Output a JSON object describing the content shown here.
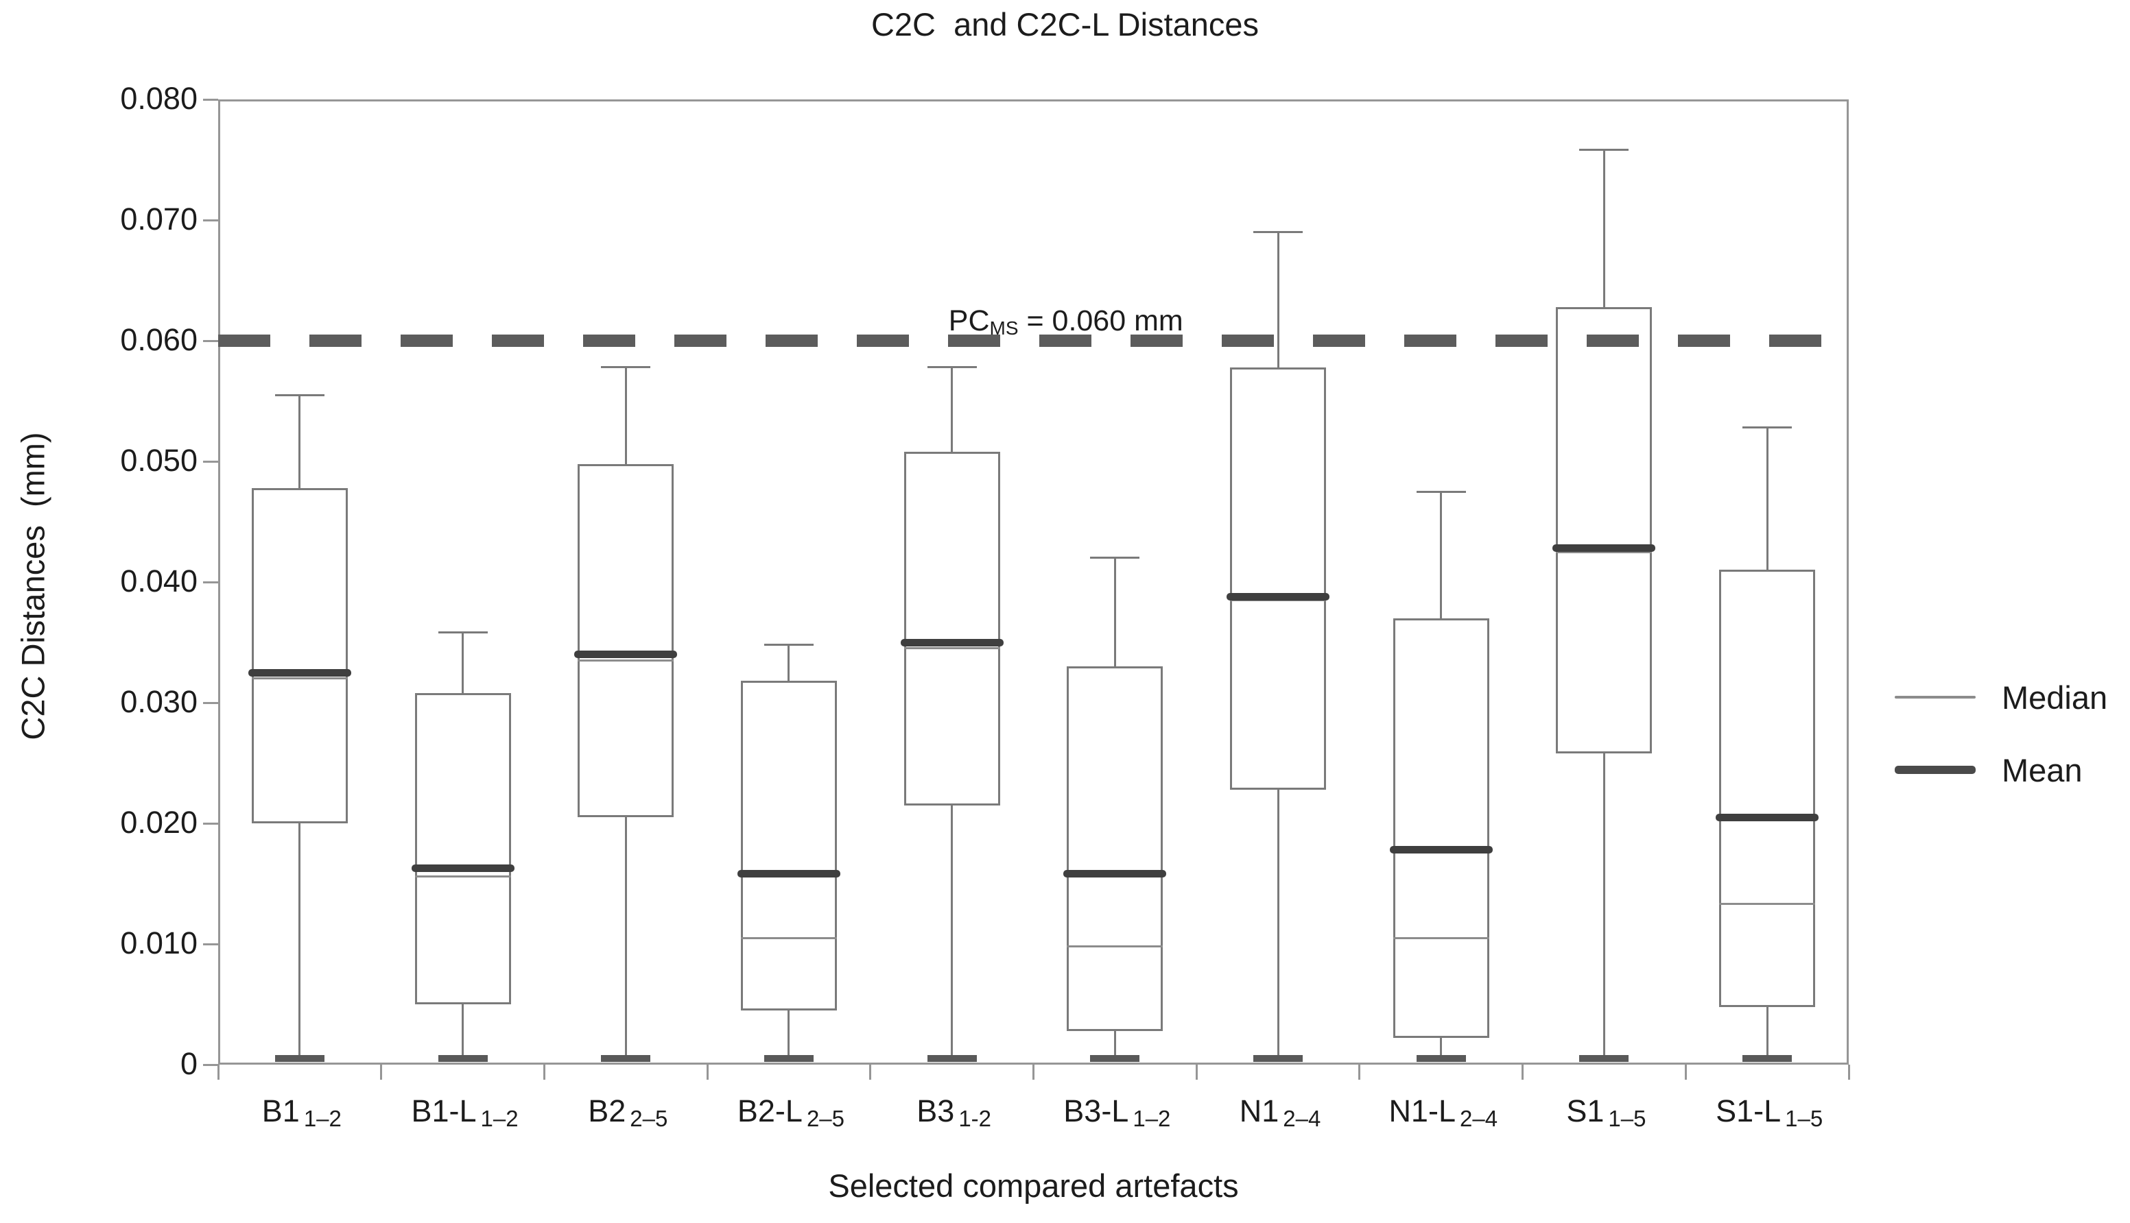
{
  "title": "C2C  and C2C-L Distances",
  "y_axis": {
    "title": "C2C Distances  (mm)",
    "ticks": [
      {
        "value": 0.08,
        "label": "0.080"
      },
      {
        "value": 0.07,
        "label": "0.070"
      },
      {
        "value": 0.06,
        "label": "0.060"
      },
      {
        "value": 0.05,
        "label": "0.050"
      },
      {
        "value": 0.04,
        "label": "0.040"
      },
      {
        "value": 0.03,
        "label": "0.030"
      },
      {
        "value": 0.02,
        "label": "0.020"
      },
      {
        "value": 0.01,
        "label": "0.010"
      },
      {
        "value": 0.0,
        "label": "0"
      }
    ]
  },
  "x_axis": {
    "title": "Selected compared artefacts"
  },
  "reference_line": {
    "value": 0.06,
    "label_prefix": "PC",
    "label_sub": "MS",
    "label_suffix": " = 0.060 mm"
  },
  "legend": {
    "items": [
      {
        "label": "Median",
        "style": "thin-gray-line"
      },
      {
        "label": "Mean",
        "style": "thick-dark-line"
      }
    ]
  },
  "colors": {
    "box_stroke": "#7a7a7a",
    "median_line": "#8c8c8c",
    "mean_line": "#3f3f3f",
    "reference_dash": "#5c5c5c",
    "axis_frame": "#969696",
    "text": "#1c1c1c",
    "background": "#ffffff"
  },
  "chart_data": {
    "type": "boxplot",
    "title": "C2C  and C2C-L Distances",
    "xlabel": "Selected compared artefacts",
    "ylabel": "C2C Distances (mm)",
    "ylim": [
      0,
      0.08
    ],
    "y_tick_step": 0.01,
    "grid": false,
    "legend_position": "right",
    "reference_line": {
      "value": 0.06,
      "label": "PCMS = 0.060 mm"
    },
    "categories": [
      "B1 1–2",
      "B1-L 1–2",
      "B2 2–5",
      "B2-L 2–5",
      "B3 1-2",
      "B3-L 1–2",
      "N1 2–4",
      "N1-L 2–4",
      "S1 1–5",
      "S1-L 1–5"
    ],
    "series": [
      {
        "label_main": "B1",
        "label_sub": "1–2",
        "whisker_low": 0.0005,
        "q1": 0.02,
        "median": 0.032,
        "mean": 0.0325,
        "q3": 0.0478,
        "whisker_high": 0.0555
      },
      {
        "label_main": "B1-L",
        "label_sub": "1–2",
        "whisker_low": 0.0005,
        "q1": 0.005,
        "median": 0.0156,
        "mean": 0.0163,
        "q3": 0.0308,
        "whisker_high": 0.0358
      },
      {
        "label_main": "B2",
        "label_sub": "2–5",
        "whisker_low": 0.0005,
        "q1": 0.0205,
        "median": 0.0335,
        "mean": 0.034,
        "q3": 0.0498,
        "whisker_high": 0.0578
      },
      {
        "label_main": "B2-L",
        "label_sub": "2–5",
        "whisker_low": 0.0005,
        "q1": 0.0045,
        "median": 0.0105,
        "mean": 0.0158,
        "q3": 0.0318,
        "whisker_high": 0.0348
      },
      {
        "label_main": "B3",
        "label_sub": "1-2",
        "whisker_low": 0.0005,
        "q1": 0.0215,
        "median": 0.0345,
        "mean": 0.035,
        "q3": 0.0508,
        "whisker_high": 0.0578
      },
      {
        "label_main": "B3-L",
        "label_sub": "1–2",
        "whisker_low": 0.0005,
        "q1": 0.0028,
        "median": 0.0098,
        "mean": 0.0158,
        "q3": 0.033,
        "whisker_high": 0.042
      },
      {
        "label_main": "N1",
        "label_sub": "2–4",
        "whisker_low": 0.0005,
        "q1": 0.0228,
        "median": 0.0385,
        "mean": 0.0388,
        "q3": 0.0578,
        "whisker_high": 0.069
      },
      {
        "label_main": "N1-L",
        "label_sub": "2–4",
        "whisker_low": 0.0005,
        "q1": 0.0022,
        "median": 0.0105,
        "mean": 0.0178,
        "q3": 0.037,
        "whisker_high": 0.0475
      },
      {
        "label_main": "S1",
        "label_sub": "1–5",
        "whisker_low": 0.0005,
        "q1": 0.0258,
        "median": 0.0425,
        "mean": 0.0428,
        "q3": 0.0628,
        "whisker_high": 0.0758
      },
      {
        "label_main": "S1-L",
        "label_sub": "1–5",
        "whisker_low": 0.0005,
        "q1": 0.0048,
        "median": 0.0133,
        "mean": 0.0205,
        "q3": 0.041,
        "whisker_high": 0.0528
      }
    ]
  }
}
